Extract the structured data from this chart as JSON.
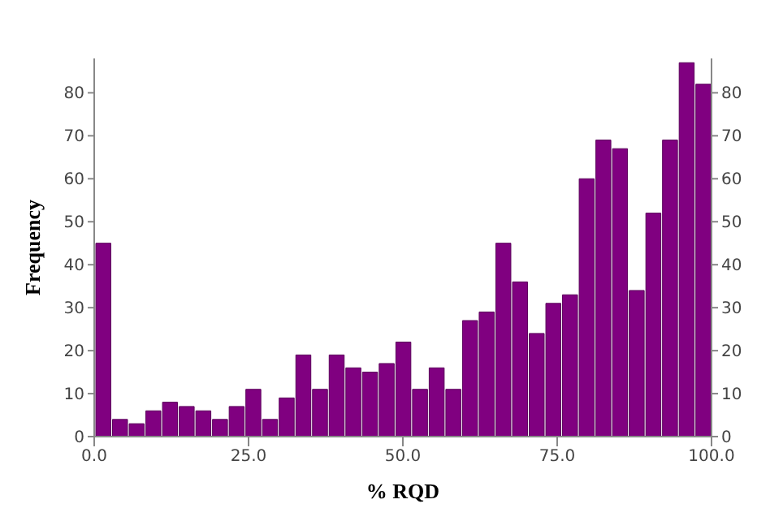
{
  "chart_data": {
    "type": "histogram",
    "xlabel": "% RQD",
    "ylabel": "Frequency",
    "bins": [
      0,
      2.7,
      5.4,
      8.1,
      10.8,
      13.5,
      16.2,
      18.9,
      21.6,
      24.3,
      27,
      29.7,
      32.4,
      35.1,
      37.8,
      40.5,
      43.2,
      45.9,
      48.6,
      51.3,
      54,
      56.7,
      59.4,
      62.1,
      64.8,
      67.5,
      70.2,
      72.9,
      75.6,
      78.3,
      81,
      83.7,
      86.4,
      89.1,
      91.8,
      94.5,
      97.2,
      99.9
    ],
    "values": [
      45,
      4,
      3,
      6,
      8,
      7,
      6,
      4,
      7,
      11,
      4,
      9,
      19,
      11,
      19,
      16,
      15,
      17,
      22,
      11,
      16,
      11,
      27,
      29,
      45,
      36,
      24,
      31,
      33,
      60,
      69,
      67,
      34,
      52,
      69,
      87,
      82
    ],
    "color": "#800080",
    "xlim": [
      0,
      100
    ],
    "xticks": [
      {
        "value": 0,
        "label": "0.0"
      },
      {
        "value": 25,
        "label": "25.0"
      },
      {
        "value": 50,
        "label": "50.0"
      },
      {
        "value": 75,
        "label": "75.0"
      },
      {
        "value": 100,
        "label": "100.0"
      }
    ],
    "ylim": [
      0,
      88
    ],
    "yticks": [
      0,
      10,
      20,
      30,
      40,
      50,
      60,
      70,
      80
    ],
    "y2lim": [
      0,
      88
    ],
    "y2ticks": [
      0,
      10,
      20,
      30,
      40,
      50,
      60,
      70,
      80
    ],
    "grid": false,
    "legend": false
  }
}
